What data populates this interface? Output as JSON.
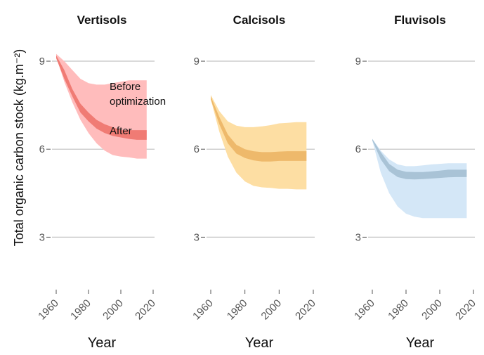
{
  "chart_data": {
    "type": "area",
    "ylabel": "Total organic carbon stock (kg.m⁻²)",
    "xlabel": "Year",
    "xlim": [
      1960,
      2020
    ],
    "ylim": [
      1.5,
      9.6
    ],
    "xticks": [
      "1960",
      "1980",
      "2000",
      "2020"
    ],
    "yticks": [
      "3",
      "6",
      "9"
    ],
    "grid": true,
    "annotations": {
      "before": [
        "Before",
        "optimization"
      ],
      "after": "After"
    },
    "panels": [
      {
        "title": "Vertisols",
        "before_color": "#ffbcbc",
        "after_color": "#f07b74",
        "x": [
          1960,
          1965,
          1970,
          1975,
          1980,
          1985,
          1990,
          1995,
          2000,
          2005,
          2010,
          2016
        ],
        "before_lower": [
          9.15,
          8.3,
          7.6,
          7.0,
          6.55,
          6.2,
          5.95,
          5.8,
          5.75,
          5.72,
          5.68,
          5.68
        ],
        "before_upper": [
          9.25,
          9.0,
          8.7,
          8.4,
          8.25,
          8.2,
          8.2,
          8.25,
          8.3,
          8.35,
          8.35,
          8.35
        ],
        "after_lower": [
          9.1,
          8.4,
          7.8,
          7.25,
          6.95,
          6.7,
          6.55,
          6.45,
          6.4,
          6.35,
          6.32,
          6.32
        ],
        "after_upper": [
          9.2,
          8.7,
          8.05,
          7.55,
          7.25,
          7.0,
          6.85,
          6.75,
          6.65,
          6.65,
          6.65,
          6.65
        ]
      },
      {
        "title": "Calcisols",
        "before_color": "#fddea3",
        "after_color": "#eeb96b",
        "x": [
          1960,
          1965,
          1970,
          1975,
          1980,
          1985,
          1990,
          1995,
          2000,
          2005,
          2010,
          2016
        ],
        "before_lower": [
          7.7,
          6.6,
          5.75,
          5.2,
          4.9,
          4.75,
          4.7,
          4.68,
          4.65,
          4.65,
          4.63,
          4.63
        ],
        "before_upper": [
          7.85,
          7.3,
          6.95,
          6.8,
          6.75,
          6.75,
          6.78,
          6.82,
          6.88,
          6.9,
          6.92,
          6.92
        ],
        "after_lower": [
          7.7,
          6.85,
          6.2,
          5.85,
          5.7,
          5.62,
          5.58,
          5.58,
          5.6,
          5.6,
          5.6,
          5.6
        ],
        "after_upper": [
          7.8,
          7.1,
          6.5,
          6.15,
          6.0,
          5.93,
          5.9,
          5.9,
          5.92,
          5.93,
          5.93,
          5.93
        ]
      },
      {
        "title": "Fluvisols",
        "before_color": "#d4e7f7",
        "after_color": "#a9c3d6",
        "x": [
          1960,
          1965,
          1970,
          1975,
          1980,
          1985,
          1990,
          1995,
          2000,
          2005,
          2010,
          2016
        ],
        "before_lower": [
          6.3,
          5.2,
          4.5,
          4.05,
          3.8,
          3.7,
          3.65,
          3.65,
          3.65,
          3.65,
          3.65,
          3.65
        ],
        "before_upper": [
          6.35,
          5.95,
          5.65,
          5.48,
          5.42,
          5.42,
          5.45,
          5.48,
          5.5,
          5.52,
          5.52,
          5.52
        ],
        "after_lower": [
          6.3,
          5.65,
          5.25,
          5.05,
          4.98,
          4.97,
          4.98,
          5.0,
          5.02,
          5.04,
          5.05,
          5.05
        ],
        "after_upper": [
          6.35,
          5.9,
          5.5,
          5.3,
          5.23,
          5.22,
          5.22,
          5.24,
          5.27,
          5.3,
          5.3,
          5.3
        ]
      }
    ]
  }
}
